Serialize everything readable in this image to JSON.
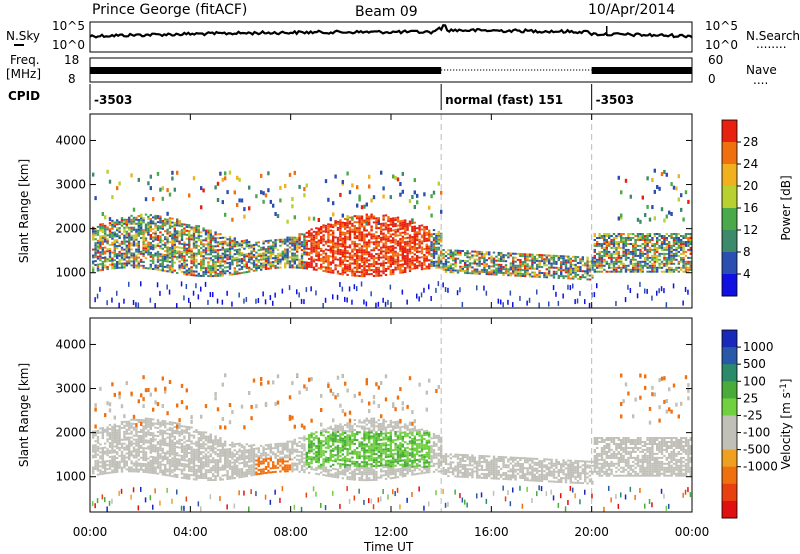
{
  "header": {
    "station": "Prince George (fitACF)",
    "beam": "Beam 09",
    "date": "10/Apr/2014"
  },
  "summary_panels": {
    "nsky": {
      "label": "N.Sky",
      "left_ticks": [
        "10^5",
        "10^0"
      ],
      "right_ticks": [
        "10^5",
        "10^0"
      ],
      "right_label": "N.Search",
      "right_label_line": "........"
    },
    "freq": {
      "label_line1": "Freq.",
      "label_line2": "[MHz]",
      "left_ticks": [
        "18",
        "8"
      ],
      "right_ticks": [
        "60",
        "0"
      ],
      "right_label": "Nave",
      "right_label_line": "...."
    },
    "cpid": {
      "label": "CPID",
      "segments": [
        {
          "label": "-3503",
          "start_h": 0,
          "end_h": 14
        },
        {
          "label": "normal (fast) 151",
          "start_h": 14,
          "end_h": 20
        },
        {
          "label": "-3503",
          "start_h": 20,
          "end_h": 24
        }
      ]
    }
  },
  "chart_data": [
    {
      "type": "heatmap",
      "name": "power-panel",
      "ylabel": "Slant Range [km]",
      "yticks": [
        1000,
        2000,
        3000,
        4000
      ],
      "ylim": [
        200,
        4600
      ],
      "xlim": [
        0,
        24
      ],
      "mode_boundaries_h": [
        14,
        20
      ],
      "colorbar": {
        "label": "Power [dB]",
        "ticks": [
          "4",
          "8",
          "12",
          "16",
          "20",
          "24",
          "28"
        ],
        "colors": [
          "#1010e0",
          "#2a4fb0",
          "#3c8a6a",
          "#4aaa4a",
          "#b8d030",
          "#f0b020",
          "#f07010",
          "#e82010"
        ]
      }
    },
    {
      "type": "heatmap",
      "name": "velocity-panel",
      "ylabel": "Slant Range [km]",
      "yticks": [
        1000,
        2000,
        3000,
        4000
      ],
      "ylim": [
        200,
        4600
      ],
      "xlim": [
        0,
        24
      ],
      "mode_boundaries_h": [
        14,
        20
      ],
      "colorbar": {
        "label": "Velocity [m s",
        "label_sup": "-1",
        "label_end": "]",
        "ticks": [
          "1000",
          "500",
          "100",
          "25",
          "-25",
          "-100",
          "-500",
          "-1000"
        ],
        "colors": [
          "#1828b8",
          "#2a58a8",
          "#2a8a6a",
          "#4aaa3a",
          "#70d040",
          "#c0c0b8",
          "#c0c0b8",
          "#f0a020",
          "#f07010",
          "#e84010",
          "#e01010"
        ]
      }
    }
  ],
  "x_axis": {
    "ticks": [
      "00:00",
      "04:00",
      "08:00",
      "12:00",
      "16:00",
      "20:00",
      "00:00"
    ],
    "label": "Time UT"
  }
}
